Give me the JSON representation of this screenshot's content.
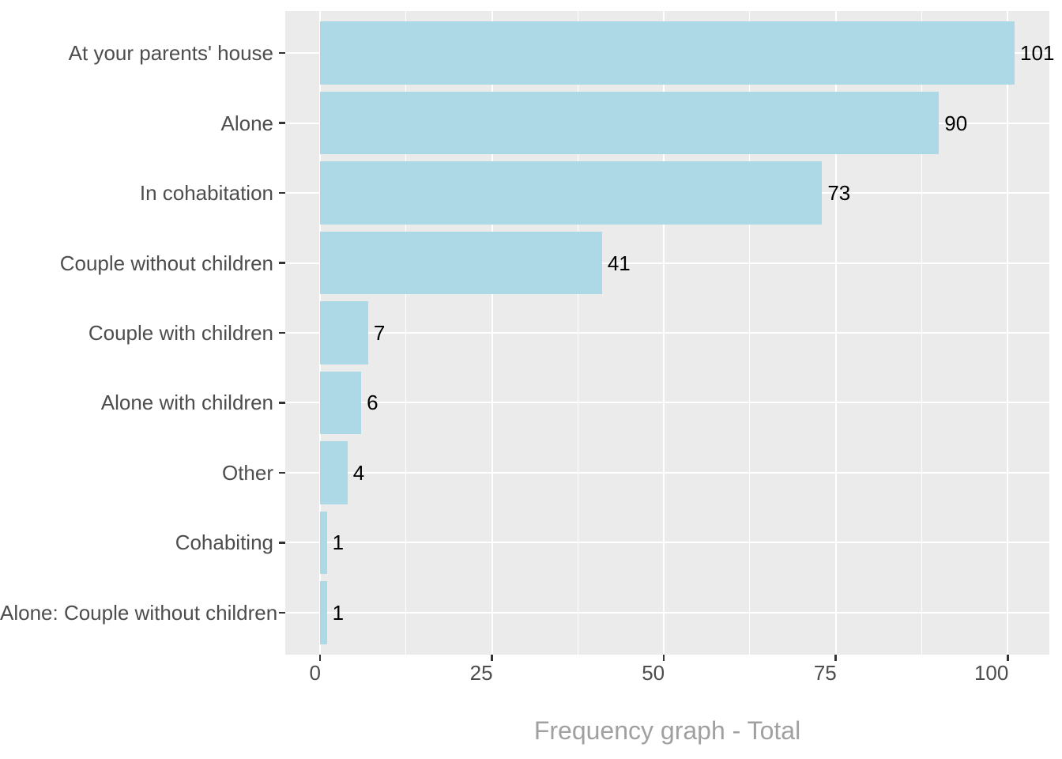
{
  "chart_data": {
    "type": "bar",
    "orientation": "horizontal",
    "title": "Frequency graph - Total",
    "categories": [
      "At your parents' house",
      "Alone",
      "In cohabitation",
      "Couple without children",
      "Couple with children",
      "Alone with children",
      "Other",
      "Cohabiting",
      "Alone: Couple without children"
    ],
    "values": [
      101,
      90,
      73,
      41,
      7,
      6,
      4,
      1,
      1
    ],
    "value_labels": [
      "101",
      "90",
      "73",
      "41",
      "7",
      "6",
      "4",
      "1",
      "1"
    ],
    "x_ticks": [
      0,
      25,
      50,
      75,
      100
    ],
    "x_tick_labels": [
      "0",
      "25",
      "50",
      "75",
      "100"
    ],
    "x_minor_ticks": [
      12.5,
      37.5,
      62.5,
      87.5
    ],
    "xlim": [
      -5.05,
      106.05
    ],
    "bar_width_fraction": 0.9,
    "grid": "on",
    "legend": "none",
    "colors": {
      "bar_fill": "#ADD8E6",
      "panel_bg": "#EBEBEB",
      "grid_major": "#FFFFFF",
      "grid_minor": "#FFFFFF",
      "axis_text": "#4D4D4D",
      "value_label": "#000000",
      "tick_mark": "#333333",
      "title": "#A0A0A0",
      "background": "#FFFFFF"
    }
  }
}
